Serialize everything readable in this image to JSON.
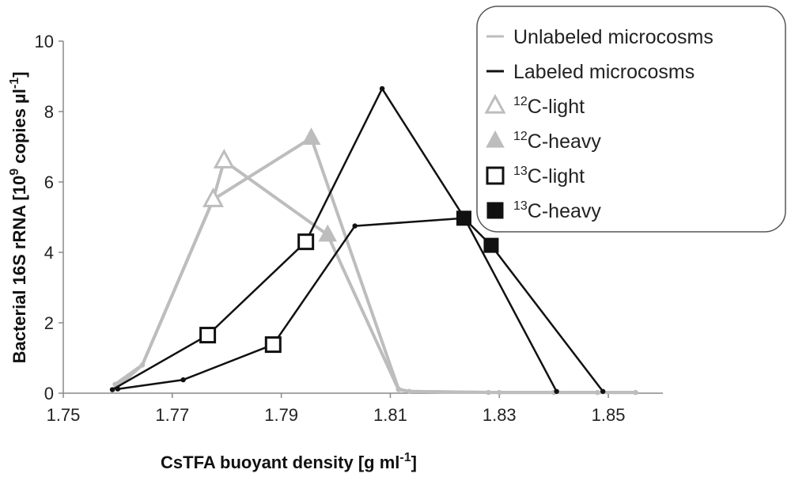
{
  "chart_data": {
    "type": "line",
    "xlabel": "CsTFA buoyant density [g ml",
    "xlabel_sup": "-1",
    "xlabel_tail": "]",
    "ylabel": "Bacterial 16S rRNA [10",
    "ylabel_sup1": "9",
    "ylabel_mid": " copies µl",
    "ylabel_sup2": "-1",
    "ylabel_tail": "]",
    "xlim": [
      1.75,
      1.86
    ],
    "ylim": [
      0,
      10
    ],
    "xticks": [
      "1.75",
      "1.77",
      "1.79",
      "1.81",
      "1.83",
      "1.85"
    ],
    "xtick_values": [
      1.75,
      1.77,
      1.79,
      1.81,
      1.83,
      1.85
    ],
    "yticks": [
      "0",
      "2",
      "4",
      "6",
      "8",
      "10"
    ],
    "ytick_values": [
      0,
      2,
      4,
      6,
      8,
      10
    ],
    "colors": {
      "unlabeled": "#bdbdbd",
      "labeled": "#111111"
    },
    "series": [
      {
        "group": "unlabeled",
        "marker": "triangle-open",
        "points": [
          [
            1.7595,
            0.25
          ],
          [
            1.7645,
            0.8
          ],
          [
            1.7775,
            5.5
          ],
          [
            1.7795,
            6.6
          ],
          [
            1.7985,
            4.5
          ],
          [
            1.8115,
            0.1
          ],
          [
            1.8135,
            0.05
          ],
          [
            1.828,
            0.02
          ],
          [
            1.84,
            0.02
          ],
          [
            1.848,
            0.02
          ],
          [
            1.855,
            0.02
          ]
        ]
      },
      {
        "group": "unlabeled",
        "marker": "triangle-filled",
        "points": [
          [
            1.7595,
            0.12
          ],
          [
            1.7645,
            0.8
          ],
          [
            1.7775,
            5.5
          ],
          [
            1.7955,
            7.25
          ],
          [
            1.8115,
            0.12
          ],
          [
            1.8135,
            0.05
          ],
          [
            1.83,
            0.02
          ],
          [
            1.84,
            0.02
          ],
          [
            1.848,
            0.02
          ],
          [
            1.855,
            0.02
          ]
        ]
      },
      {
        "group": "labeled",
        "marker": "square-open",
        "points": [
          [
            1.759,
            0.1
          ],
          [
            1.7765,
            1.65
          ],
          [
            1.7945,
            4.3
          ],
          [
            1.8085,
            8.65
          ],
          [
            1.8235,
            5.0
          ],
          [
            1.8405,
            0.05
          ]
        ]
      },
      {
        "group": "labeled",
        "marker": "square-filled",
        "points": [
          [
            1.76,
            0.12
          ],
          [
            1.772,
            0.38
          ],
          [
            1.7885,
            1.38
          ],
          [
            1.8035,
            4.75
          ],
          [
            1.8235,
            4.97
          ],
          [
            1.8285,
            4.2
          ],
          [
            1.849,
            0.05
          ]
        ]
      }
    ],
    "legend": {
      "placement": "top-right",
      "entries": [
        {
          "symbol": "line",
          "color": "#bdbdbd",
          "label": "Unlabeled microcosms"
        },
        {
          "symbol": "line",
          "color": "#111111",
          "label": "Labeled microcosms"
        },
        {
          "symbol": "triangle-open",
          "color": "#bdbdbd",
          "sup": "12",
          "label": "C-light"
        },
        {
          "symbol": "triangle-filled",
          "color": "#bdbdbd",
          "sup": "12",
          "label": "C-heavy"
        },
        {
          "symbol": "square-open",
          "color": "#111111",
          "sup": "13",
          "label": "C-light"
        },
        {
          "symbol": "square-filled",
          "color": "#111111",
          "sup": "13",
          "label": "C-heavy"
        }
      ]
    }
  }
}
